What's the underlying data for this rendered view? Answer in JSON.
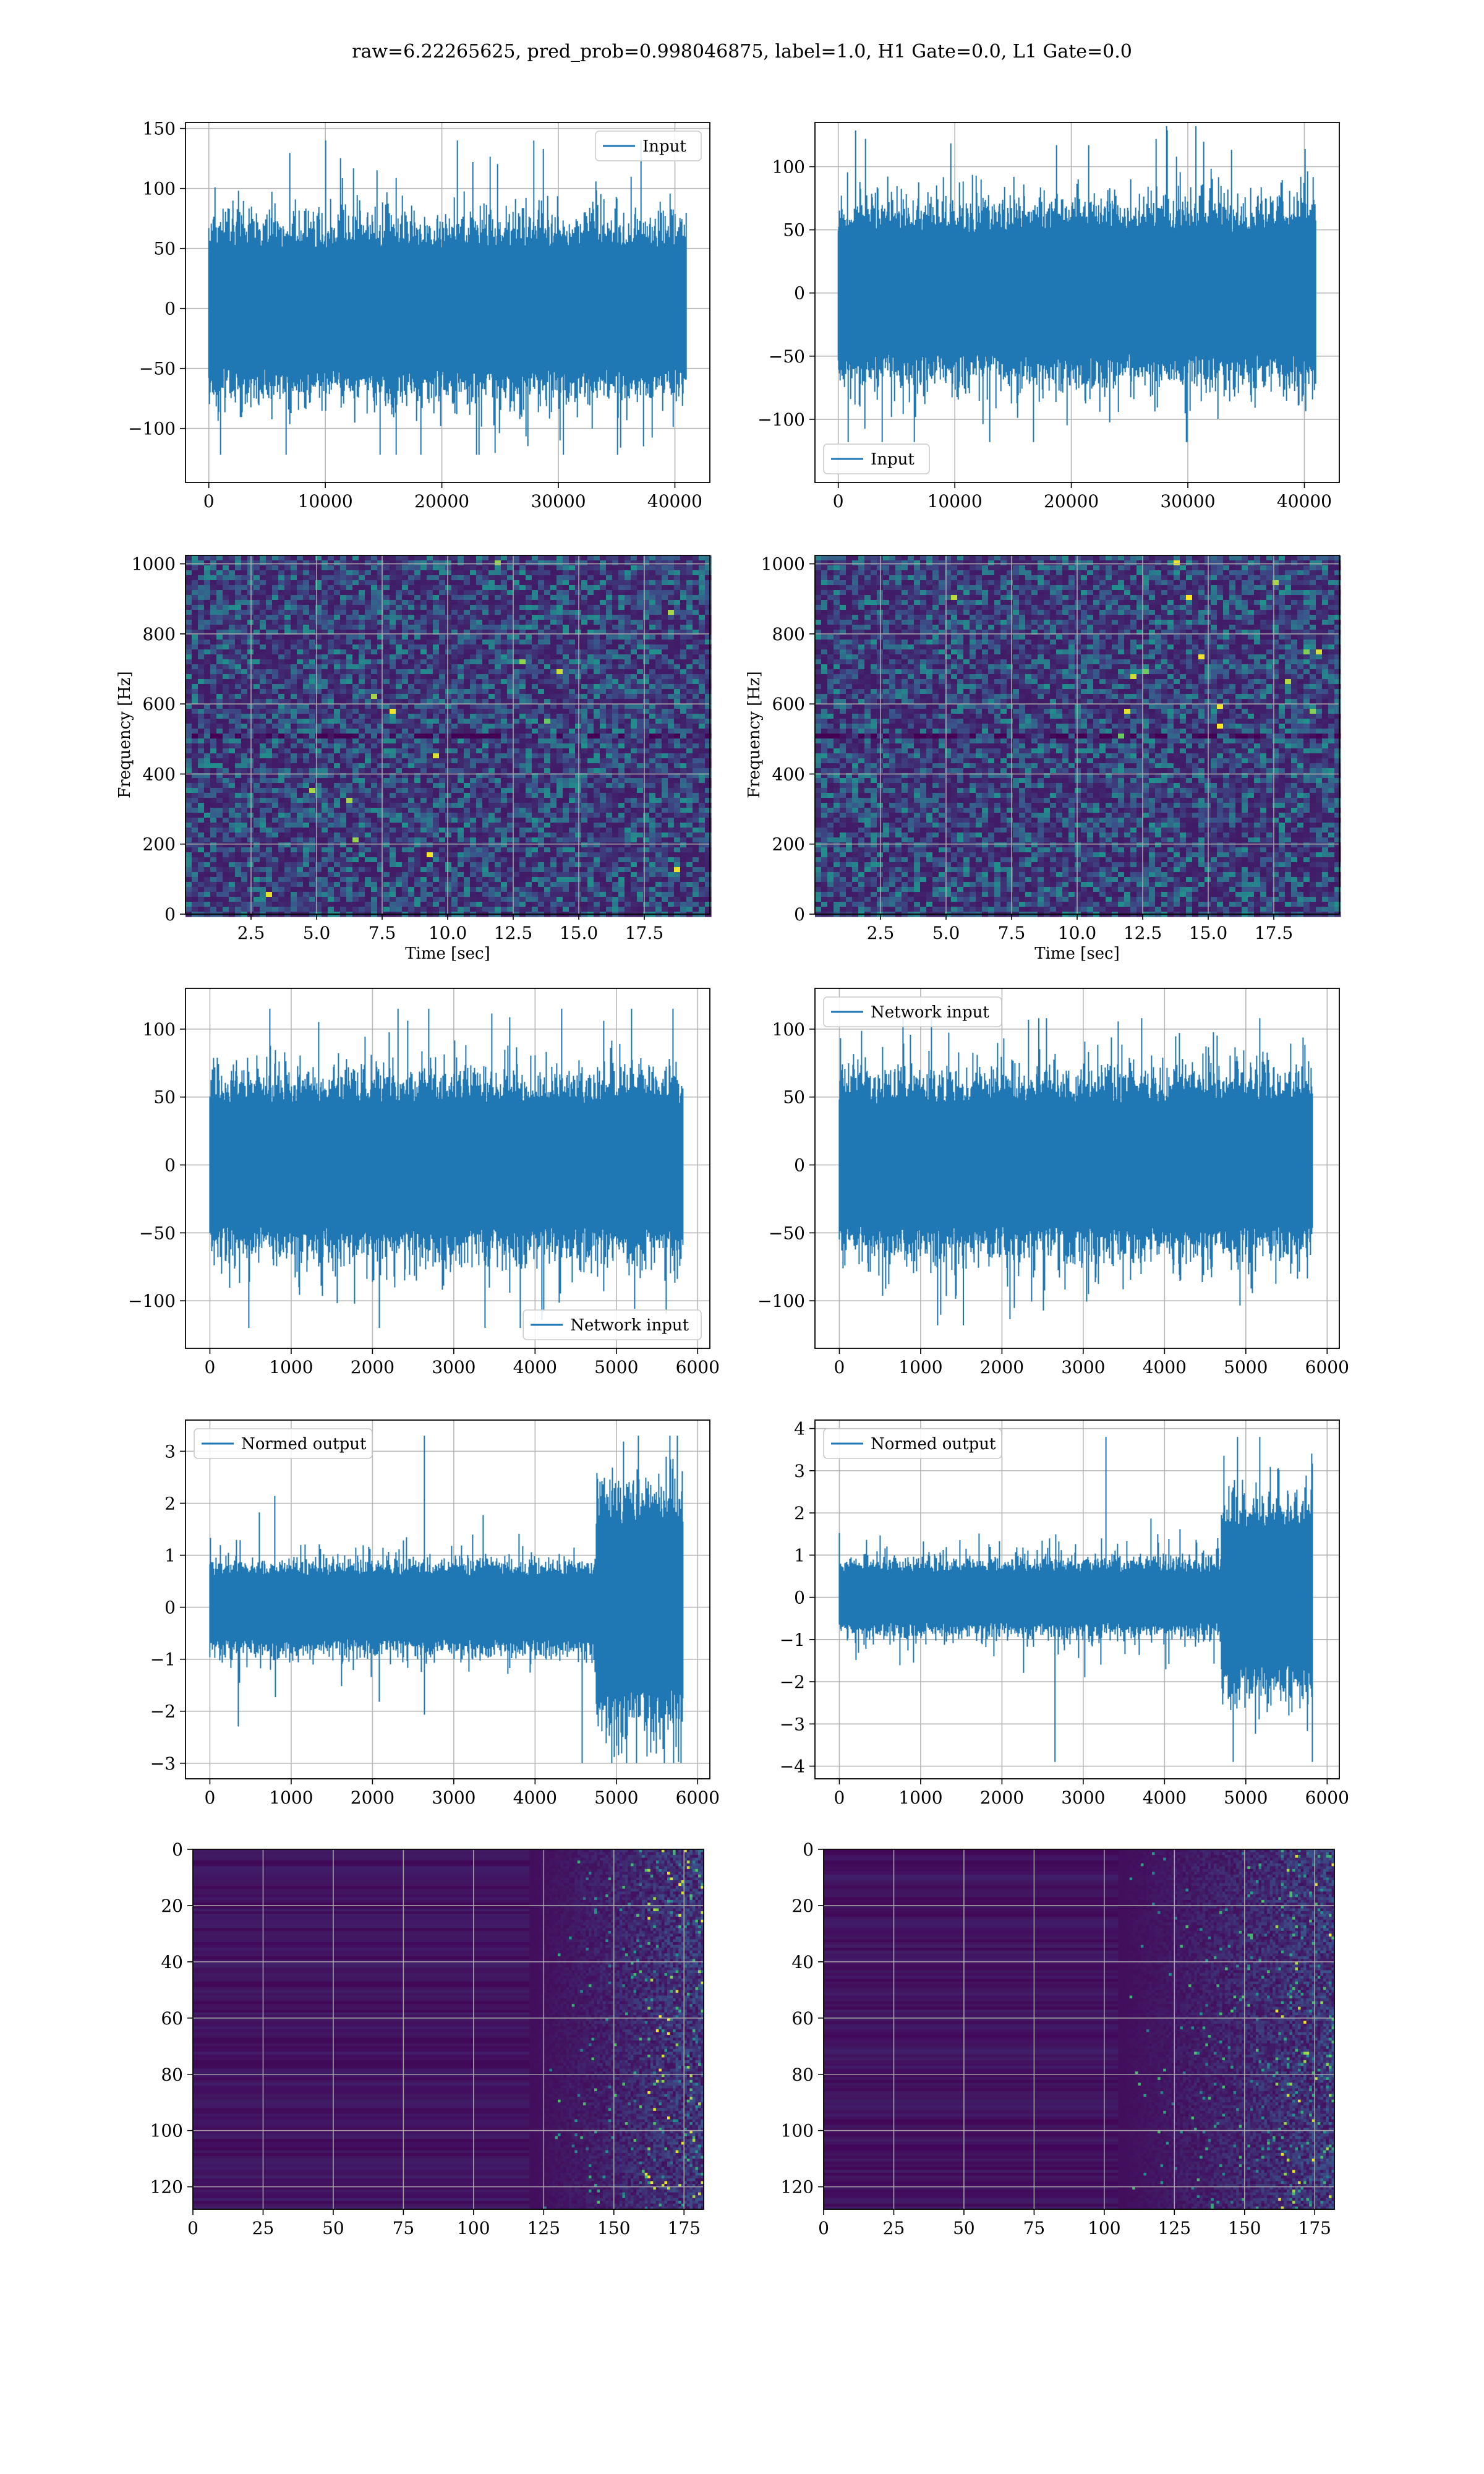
{
  "suptitle": "raw=6.22265625, pred_prob=0.998046875, label=1.0, H1 Gate=0.0, L1 Gate=0.0",
  "colors": {
    "line": "#1f77b4",
    "grid": "#b0b0b0",
    "viridis_low": "#440154",
    "viridis_mid": "#21918c",
    "viridis_high": "#fde725"
  },
  "chart_data": [
    {
      "id": "r1c1",
      "type": "line",
      "title": "",
      "xlabel": "",
      "ylabel": "",
      "xlim": [
        -2000,
        43000
      ],
      "ylim": [
        -145,
        155
      ],
      "xticks": [
        0,
        10000,
        20000,
        30000,
        40000
      ],
      "yticks": [
        -100,
        -50,
        0,
        50,
        100,
        150
      ],
      "series": [
        {
          "name": "Input",
          "x_range": [
            0,
            40960
          ],
          "envelope": {
            "typical": [
              -50,
              50
            ],
            "max": 140,
            "min": -122
          }
        }
      ],
      "legend": "upper right",
      "grid": true
    },
    {
      "id": "r1c2",
      "type": "line",
      "title": "",
      "xlabel": "",
      "ylabel": "",
      "xlim": [
        -2000,
        43000
      ],
      "ylim": [
        -150,
        135
      ],
      "xticks": [
        0,
        10000,
        20000,
        30000,
        40000
      ],
      "yticks": [
        -100,
        -50,
        0,
        50,
        100
      ],
      "series": [
        {
          "name": "Input",
          "x_range": [
            0,
            40960
          ],
          "envelope": {
            "typical": [
              -48,
              48
            ],
            "max": 132,
            "min": -118
          }
        }
      ],
      "legend": "lower left",
      "grid": true
    },
    {
      "id": "r2c1",
      "type": "heatmap",
      "title": "",
      "xlabel": "Time [sec]",
      "ylabel": "Frequency [Hz]",
      "xlim": [
        0,
        20
      ],
      "ylim": [
        0,
        1024
      ],
      "xticks": [
        2.5,
        5.0,
        7.5,
        10.0,
        12.5,
        15.0,
        17.5
      ],
      "yticks": [
        0,
        200,
        400,
        600,
        800,
        1000
      ],
      "xtick_labels": [
        "2.5",
        "5.0",
        "7.5",
        "10.0",
        "12.5",
        "15.0",
        "17.5"
      ],
      "colormap": "viridis",
      "grid": true
    },
    {
      "id": "r2c2",
      "type": "heatmap",
      "title": "",
      "xlabel": "Time [sec]",
      "ylabel": "Frequency [Hz]",
      "xlim": [
        0,
        20
      ],
      "ylim": [
        0,
        1024
      ],
      "xticks": [
        2.5,
        5.0,
        7.5,
        10.0,
        12.5,
        15.0,
        17.5
      ],
      "yticks": [
        0,
        200,
        400,
        600,
        800,
        1000
      ],
      "xtick_labels": [
        "2.5",
        "5.0",
        "7.5",
        "10.0",
        "12.5",
        "15.0",
        "17.5"
      ],
      "colormap": "viridis",
      "grid": true
    },
    {
      "id": "r3c1",
      "type": "line",
      "title": "",
      "xlabel": "",
      "ylabel": "",
      "xlim": [
        -300,
        6150
      ],
      "ylim": [
        -135,
        130
      ],
      "xticks": [
        0,
        1000,
        2000,
        3000,
        4000,
        5000,
        6000
      ],
      "yticks": [
        -100,
        -50,
        0,
        50,
        100
      ],
      "series": [
        {
          "name": "Network input",
          "x_range": [
            0,
            5820
          ],
          "envelope": {
            "typical": [
              -45,
              45
            ],
            "max": 115,
            "min": -120
          }
        }
      ],
      "legend": "lower right",
      "grid": true
    },
    {
      "id": "r3c2",
      "type": "line",
      "title": "",
      "xlabel": "",
      "ylabel": "",
      "xlim": [
        -300,
        6150
      ],
      "ylim": [
        -135,
        130
      ],
      "xticks": [
        0,
        1000,
        2000,
        3000,
        4000,
        5000,
        6000
      ],
      "yticks": [
        -100,
        -50,
        0,
        50,
        100
      ],
      "series": [
        {
          "name": "Network input",
          "x_range": [
            0,
            5820
          ],
          "envelope": {
            "typical": [
              -45,
              45
            ],
            "max": 108,
            "min": -118
          }
        }
      ],
      "legend": "upper left",
      "grid": true
    },
    {
      "id": "r4c1",
      "type": "line",
      "title": "",
      "xlabel": "",
      "ylabel": "",
      "xlim": [
        -300,
        6150
      ],
      "ylim": [
        -3.3,
        3.6
      ],
      "xticks": [
        0,
        1000,
        2000,
        3000,
        4000,
        5000,
        6000
      ],
      "yticks": [
        -3,
        -2,
        -1,
        0,
        1,
        2,
        3
      ],
      "series": [
        {
          "name": "Normed output",
          "x_range": [
            0,
            5820
          ],
          "envelope": {
            "typical": [
              -0.6,
              0.6
            ],
            "burst_start": 4750,
            "burst_typical": [
              -1.6,
              1.6
            ],
            "max": 3.3,
            "min": -3.0
          }
        }
      ],
      "legend": "upper left",
      "grid": true
    },
    {
      "id": "r4c2",
      "type": "line",
      "title": "",
      "xlabel": "",
      "ylabel": "",
      "xlim": [
        -300,
        6150
      ],
      "ylim": [
        -4.3,
        4.2
      ],
      "xticks": [
        0,
        1000,
        2000,
        3000,
        4000,
        5000,
        6000
      ],
      "yticks": [
        -4,
        -3,
        -2,
        -1,
        0,
        1,
        2,
        3,
        4
      ],
      "series": [
        {
          "name": "Normed output",
          "x_range": [
            0,
            5820
          ],
          "envelope": {
            "typical": [
              -0.6,
              0.6
            ],
            "burst_start": 4700,
            "burst_typical": [
              -1.6,
              1.6
            ],
            "max": 3.8,
            "min": -3.9
          }
        }
      ],
      "legend": "upper left",
      "grid": true
    },
    {
      "id": "r5c1",
      "type": "heatmap",
      "title": "",
      "xlabel": "",
      "ylabel": "",
      "xlim": [
        0,
        182
      ],
      "ylim": [
        0,
        128
      ],
      "y_inverted": true,
      "xticks": [
        0,
        25,
        50,
        75,
        100,
        125,
        150,
        175
      ],
      "yticks": [
        0,
        20,
        40,
        60,
        80,
        100,
        120
      ],
      "colormap": "viridis",
      "activity_start": 130,
      "grid": true
    },
    {
      "id": "r5c2",
      "type": "heatmap",
      "title": "",
      "xlabel": "",
      "ylabel": "",
      "xlim": [
        0,
        182
      ],
      "ylim": [
        0,
        128
      ],
      "y_inverted": true,
      "xticks": [
        0,
        25,
        50,
        75,
        100,
        125,
        150,
        175
      ],
      "yticks": [
        0,
        20,
        40,
        60,
        80,
        100,
        120
      ],
      "colormap": "viridis",
      "activity_start": 115,
      "grid": true
    }
  ]
}
